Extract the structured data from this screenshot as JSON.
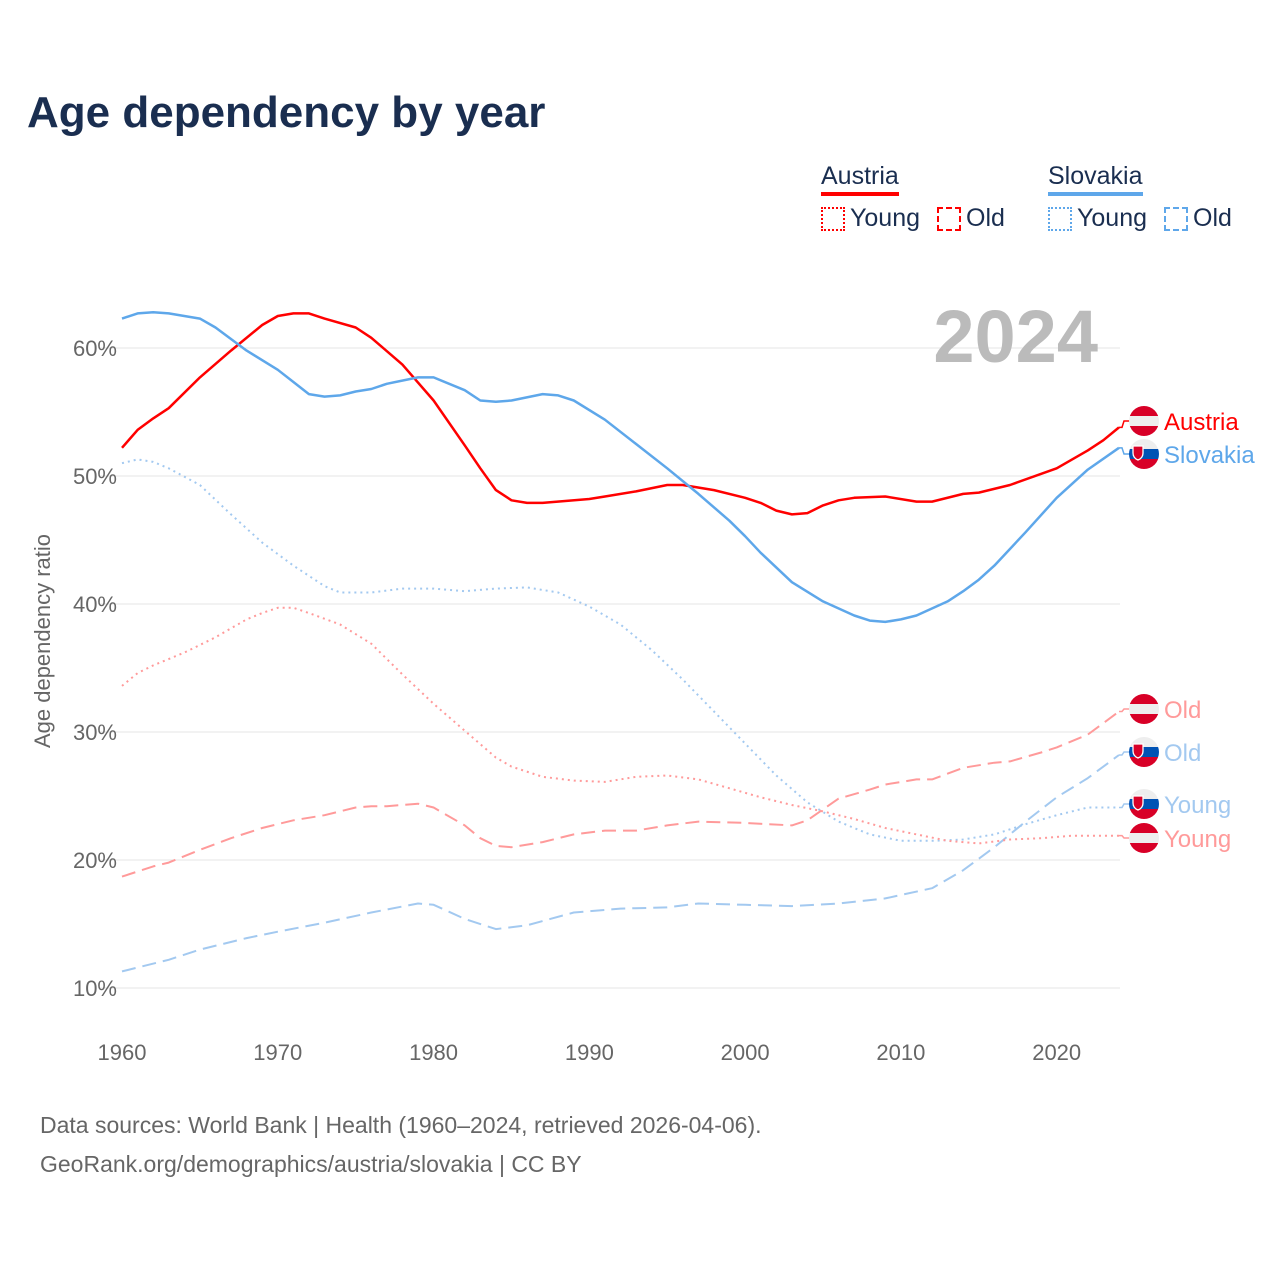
{
  "title": "Age dependency by year",
  "year_watermark": "2024",
  "legend": {
    "countries": [
      {
        "name": "Austria",
        "color": "#ff0000",
        "light_color": "#ff9a9a",
        "items": [
          "Young",
          "Old"
        ]
      },
      {
        "name": "Slovakia",
        "color": "#5ea7ea",
        "light_color": "#a3c9f0",
        "items": [
          "Young",
          "Old"
        ]
      }
    ]
  },
  "footer": {
    "line1": "Data sources: World Bank | Health (1960–2024, retrieved 2026-04-06).",
    "line2": "GeoRank.org/demographics/austria/slovakia | CC BY"
  },
  "chart_data": {
    "type": "line",
    "title": "Age dependency by year",
    "xlabel": "",
    "ylabel": "Age dependency ratio",
    "xlim": [
      1960,
      2024
    ],
    "ylim": [
      10,
      63
    ],
    "yticks": [
      10,
      20,
      30,
      40,
      50,
      60
    ],
    "ytick_labels": [
      "10%",
      "20%",
      "30%",
      "40%",
      "50%",
      "60%"
    ],
    "xticks": [
      1960,
      1970,
      1980,
      1990,
      2000,
      2010,
      2020
    ],
    "xtick_labels": [
      "1960",
      "1970",
      "1980",
      "1990",
      "2000",
      "2010",
      "2020"
    ],
    "grid": true,
    "legend_position": "top-right",
    "series": [
      {
        "name": "Austria",
        "end_label": "Austria",
        "country": "Austria",
        "style": "solid",
        "color": "#ff0000",
        "points": [
          [
            1960,
            52.2
          ],
          [
            1961,
            53.6
          ],
          [
            1962,
            54.5
          ],
          [
            1963,
            55.3
          ],
          [
            1965,
            57.7
          ],
          [
            1967,
            59.8
          ],
          [
            1969,
            61.8
          ],
          [
            1970,
            62.5
          ],
          [
            1971,
            62.7
          ],
          [
            1972,
            62.7
          ],
          [
            1973,
            62.3
          ],
          [
            1975,
            61.6
          ],
          [
            1976,
            60.8
          ],
          [
            1978,
            58.7
          ],
          [
            1980,
            55.9
          ],
          [
            1982,
            52.4
          ],
          [
            1983,
            50.6
          ],
          [
            1984,
            48.9
          ],
          [
            1985,
            48.1
          ],
          [
            1986,
            47.9
          ],
          [
            1987,
            47.9
          ],
          [
            1990,
            48.2
          ],
          [
            1991,
            48.4
          ],
          [
            1993,
            48.8
          ],
          [
            1995,
            49.3
          ],
          [
            1996,
            49.3
          ],
          [
            1998,
            48.9
          ],
          [
            2000,
            48.3
          ],
          [
            2001,
            47.9
          ],
          [
            2002,
            47.3
          ],
          [
            2003,
            47.0
          ],
          [
            2004,
            47.1
          ],
          [
            2005,
            47.7
          ],
          [
            2006,
            48.1
          ],
          [
            2007,
            48.3
          ],
          [
            2009,
            48.4
          ],
          [
            2011,
            48.0
          ],
          [
            2012,
            48.0
          ],
          [
            2014,
            48.6
          ],
          [
            2015,
            48.7
          ],
          [
            2017,
            49.3
          ],
          [
            2020,
            50.6
          ],
          [
            2022,
            52.0
          ],
          [
            2023,
            52.8
          ],
          [
            2024,
            53.8
          ]
        ]
      },
      {
        "name": "Slovakia",
        "end_label": "Slovakia",
        "country": "Slovakia",
        "style": "solid",
        "color": "#5ea7ea",
        "points": [
          [
            1960,
            62.3
          ],
          [
            1961,
            62.7
          ],
          [
            1962,
            62.8
          ],
          [
            1963,
            62.7
          ],
          [
            1965,
            62.3
          ],
          [
            1966,
            61.6
          ],
          [
            1968,
            59.8
          ],
          [
            1970,
            58.3
          ],
          [
            1972,
            56.4
          ],
          [
            1973,
            56.2
          ],
          [
            1974,
            56.3
          ],
          [
            1975,
            56.6
          ],
          [
            1976,
            56.8
          ],
          [
            1977,
            57.2
          ],
          [
            1979,
            57.7
          ],
          [
            1980,
            57.7
          ],
          [
            1982,
            56.7
          ],
          [
            1983,
            55.9
          ],
          [
            1984,
            55.8
          ],
          [
            1985,
            55.9
          ],
          [
            1987,
            56.4
          ],
          [
            1988,
            56.3
          ],
          [
            1989,
            55.9
          ],
          [
            1991,
            54.4
          ],
          [
            1993,
            52.5
          ],
          [
            1995,
            50.6
          ],
          [
            1997,
            48.6
          ],
          [
            1999,
            46.5
          ],
          [
            2000,
            45.3
          ],
          [
            2001,
            44.0
          ],
          [
            2003,
            41.7
          ],
          [
            2005,
            40.2
          ],
          [
            2007,
            39.1
          ],
          [
            2008,
            38.7
          ],
          [
            2009,
            38.6
          ],
          [
            2010,
            38.8
          ],
          [
            2011,
            39.1
          ],
          [
            2013,
            40.2
          ],
          [
            2014,
            41.0
          ],
          [
            2015,
            41.9
          ],
          [
            2016,
            43.0
          ],
          [
            2018,
            45.6
          ],
          [
            2020,
            48.3
          ],
          [
            2022,
            50.5
          ],
          [
            2024,
            52.2
          ]
        ]
      },
      {
        "name": "Austria Old",
        "end_label": "Old",
        "country": "Austria",
        "style": "dashed",
        "color": "#ff9a9a",
        "points": [
          [
            1960,
            18.7
          ],
          [
            1962,
            19.5
          ],
          [
            1963,
            19.8
          ],
          [
            1965,
            20.8
          ],
          [
            1967,
            21.7
          ],
          [
            1969,
            22.5
          ],
          [
            1971,
            23.1
          ],
          [
            1973,
            23.5
          ],
          [
            1975,
            24.1
          ],
          [
            1976,
            24.2
          ],
          [
            1977,
            24.2
          ],
          [
            1979,
            24.4
          ],
          [
            1980,
            24.1
          ],
          [
            1982,
            22.7
          ],
          [
            1983,
            21.7
          ],
          [
            1984,
            21.1
          ],
          [
            1985,
            21.0
          ],
          [
            1987,
            21.4
          ],
          [
            1989,
            22.0
          ],
          [
            1991,
            22.3
          ],
          [
            1993,
            22.3
          ],
          [
            1995,
            22.7
          ],
          [
            1997,
            23.0
          ],
          [
            2000,
            22.9
          ],
          [
            2003,
            22.7
          ],
          [
            2004,
            23.1
          ],
          [
            2006,
            24.8
          ],
          [
            2008,
            25.5
          ],
          [
            2009,
            25.9
          ],
          [
            2011,
            26.3
          ],
          [
            2012,
            26.3
          ],
          [
            2014,
            27.2
          ],
          [
            2016,
            27.6
          ],
          [
            2017,
            27.7
          ],
          [
            2019,
            28.4
          ],
          [
            2020,
            28.8
          ],
          [
            2022,
            29.8
          ],
          [
            2024,
            31.6
          ]
        ]
      },
      {
        "name": "Slovakia Old",
        "end_label": "Old",
        "country": "Slovakia",
        "style": "dashed",
        "color": "#a3c9f0",
        "points": [
          [
            1960,
            11.3
          ],
          [
            1963,
            12.2
          ],
          [
            1965,
            13.0
          ],
          [
            1968,
            13.9
          ],
          [
            1970,
            14.4
          ],
          [
            1973,
            15.1
          ],
          [
            1976,
            15.9
          ],
          [
            1979,
            16.6
          ],
          [
            1980,
            16.5
          ],
          [
            1982,
            15.4
          ],
          [
            1984,
            14.6
          ],
          [
            1986,
            14.9
          ],
          [
            1989,
            15.9
          ],
          [
            1992,
            16.2
          ],
          [
            1995,
            16.3
          ],
          [
            1997,
            16.6
          ],
          [
            2000,
            16.5
          ],
          [
            2003,
            16.4
          ],
          [
            2006,
            16.6
          ],
          [
            2009,
            17.0
          ],
          [
            2012,
            17.8
          ],
          [
            2014,
            19.2
          ],
          [
            2016,
            21.0
          ],
          [
            2018,
            23.0
          ],
          [
            2020,
            24.9
          ],
          [
            2022,
            26.4
          ],
          [
            2024,
            28.2
          ]
        ]
      },
      {
        "name": "Slovakia Young",
        "end_label": "Young",
        "country": "Slovakia",
        "style": "dotted",
        "color": "#a3c9f0",
        "points": [
          [
            1960,
            51.0
          ],
          [
            1961,
            51.3
          ],
          [
            1962,
            51.1
          ],
          [
            1963,
            50.6
          ],
          [
            1965,
            49.3
          ],
          [
            1967,
            47.0
          ],
          [
            1969,
            44.8
          ],
          [
            1971,
            43.0
          ],
          [
            1973,
            41.4
          ],
          [
            1974,
            40.9
          ],
          [
            1976,
            40.9
          ],
          [
            1978,
            41.2
          ],
          [
            1980,
            41.2
          ],
          [
            1982,
            41.0
          ],
          [
            1984,
            41.2
          ],
          [
            1986,
            41.3
          ],
          [
            1988,
            40.9
          ],
          [
            1990,
            39.8
          ],
          [
            1992,
            38.4
          ],
          [
            1994,
            36.4
          ],
          [
            1996,
            34.1
          ],
          [
            1998,
            31.6
          ],
          [
            2000,
            29.1
          ],
          [
            2002,
            26.6
          ],
          [
            2004,
            24.5
          ],
          [
            2006,
            23.0
          ],
          [
            2008,
            22.0
          ],
          [
            2010,
            21.5
          ],
          [
            2012,
            21.5
          ],
          [
            2014,
            21.6
          ],
          [
            2016,
            22.0
          ],
          [
            2018,
            22.8
          ],
          [
            2020,
            23.5
          ],
          [
            2022,
            24.1
          ],
          [
            2024,
            24.1
          ]
        ]
      },
      {
        "name": "Austria Young",
        "end_label": "Young",
        "country": "Austria",
        "style": "dotted",
        "color": "#ff9a9a",
        "points": [
          [
            1960,
            33.6
          ],
          [
            1961,
            34.6
          ],
          [
            1962,
            35.2
          ],
          [
            1964,
            36.2
          ],
          [
            1966,
            37.4
          ],
          [
            1968,
            38.8
          ],
          [
            1969,
            39.3
          ],
          [
            1970,
            39.7
          ],
          [
            1971,
            39.7
          ],
          [
            1972,
            39.3
          ],
          [
            1974,
            38.4
          ],
          [
            1976,
            36.9
          ],
          [
            1978,
            34.5
          ],
          [
            1980,
            32.2
          ],
          [
            1982,
            30.1
          ],
          [
            1984,
            28.0
          ],
          [
            1985,
            27.3
          ],
          [
            1987,
            26.5
          ],
          [
            1989,
            26.2
          ],
          [
            1991,
            26.1
          ],
          [
            1993,
            26.5
          ],
          [
            1995,
            26.6
          ],
          [
            1997,
            26.3
          ],
          [
            1999,
            25.6
          ],
          [
            2001,
            24.9
          ],
          [
            2003,
            24.3
          ],
          [
            2005,
            23.8
          ],
          [
            2007,
            23.2
          ],
          [
            2009,
            22.5
          ],
          [
            2011,
            22.0
          ],
          [
            2013,
            21.5
          ],
          [
            2015,
            21.3
          ],
          [
            2017,
            21.6
          ],
          [
            2019,
            21.7
          ],
          [
            2021,
            21.9
          ],
          [
            2024,
            21.9
          ]
        ]
      }
    ]
  }
}
